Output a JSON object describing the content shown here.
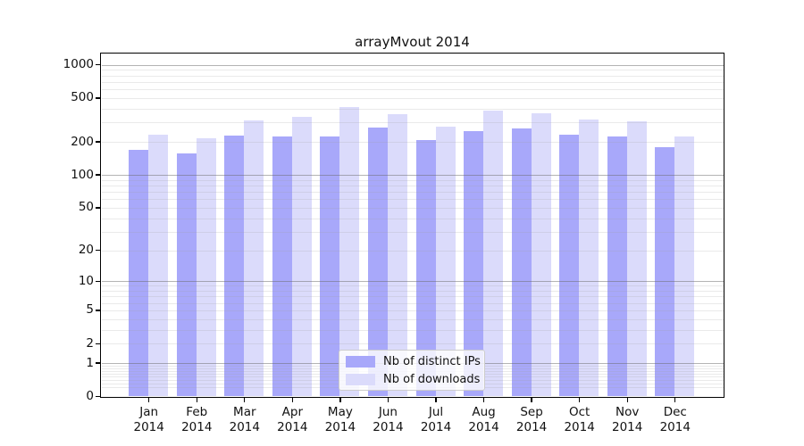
{
  "chart_data": {
    "type": "bar",
    "title": "arrayMvout 2014",
    "categories": [
      {
        "month": "Jan",
        "year": "2014"
      },
      {
        "month": "Feb",
        "year": "2014"
      },
      {
        "month": "Mar",
        "year": "2014"
      },
      {
        "month": "Apr",
        "year": "2014"
      },
      {
        "month": "May",
        "year": "2014"
      },
      {
        "month": "Jun",
        "year": "2014"
      },
      {
        "month": "Jul",
        "year": "2014"
      },
      {
        "month": "Aug",
        "year": "2014"
      },
      {
        "month": "Sep",
        "year": "2014"
      },
      {
        "month": "Oct",
        "year": "2014"
      },
      {
        "month": "Nov",
        "year": "2014"
      },
      {
        "month": "Dec",
        "year": "2014"
      }
    ],
    "series": [
      {
        "name": "Nb of distinct IPs",
        "color": "#a8a8fa",
        "values": [
          170,
          156,
          229,
          222,
          225,
          268,
          209,
          252,
          265,
          232,
          225,
          179
        ]
      },
      {
        "name": "Nb of downloads",
        "color": "#dbdbfb",
        "values": [
          234,
          216,
          313,
          338,
          415,
          356,
          277,
          383,
          366,
          318,
          310,
          225
        ]
      }
    ],
    "yticks": [
      0,
      1,
      2,
      5,
      10,
      20,
      50,
      100,
      200,
      500,
      1000
    ],
    "yscale": "log1p",
    "ylim": [
      0,
      1100
    ],
    "xlabel": "",
    "ylabel": "",
    "grid": "on",
    "grid_position": "above-bars",
    "legend_position": "lower center",
    "background": "#ffffff",
    "text_color": "#111111"
  }
}
